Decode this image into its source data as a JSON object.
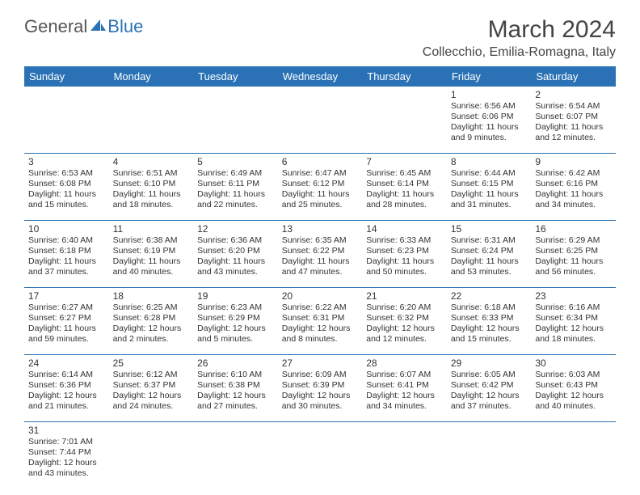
{
  "logo": {
    "text_general": "General",
    "text_blue": "Blue"
  },
  "title": "March 2024",
  "location": "Collecchio, Emilia-Romagna, Italy",
  "colors": {
    "header_bg": "#2a72b5",
    "header_fg": "#ffffff",
    "rule": "#2a72b5",
    "text": "#333333"
  },
  "weekdays": [
    "Sunday",
    "Monday",
    "Tuesday",
    "Wednesday",
    "Thursday",
    "Friday",
    "Saturday"
  ],
  "weeks": [
    [
      null,
      null,
      null,
      null,
      null,
      {
        "n": "1",
        "sr": "Sunrise: 6:56 AM",
        "ss": "Sunset: 6:06 PM",
        "dl": "Daylight: 11 hours and 9 minutes."
      },
      {
        "n": "2",
        "sr": "Sunrise: 6:54 AM",
        "ss": "Sunset: 6:07 PM",
        "dl": "Daylight: 11 hours and 12 minutes."
      }
    ],
    [
      {
        "n": "3",
        "sr": "Sunrise: 6:53 AM",
        "ss": "Sunset: 6:08 PM",
        "dl": "Daylight: 11 hours and 15 minutes."
      },
      {
        "n": "4",
        "sr": "Sunrise: 6:51 AM",
        "ss": "Sunset: 6:10 PM",
        "dl": "Daylight: 11 hours and 18 minutes."
      },
      {
        "n": "5",
        "sr": "Sunrise: 6:49 AM",
        "ss": "Sunset: 6:11 PM",
        "dl": "Daylight: 11 hours and 22 minutes."
      },
      {
        "n": "6",
        "sr": "Sunrise: 6:47 AM",
        "ss": "Sunset: 6:12 PM",
        "dl": "Daylight: 11 hours and 25 minutes."
      },
      {
        "n": "7",
        "sr": "Sunrise: 6:45 AM",
        "ss": "Sunset: 6:14 PM",
        "dl": "Daylight: 11 hours and 28 minutes."
      },
      {
        "n": "8",
        "sr": "Sunrise: 6:44 AM",
        "ss": "Sunset: 6:15 PM",
        "dl": "Daylight: 11 hours and 31 minutes."
      },
      {
        "n": "9",
        "sr": "Sunrise: 6:42 AM",
        "ss": "Sunset: 6:16 PM",
        "dl": "Daylight: 11 hours and 34 minutes."
      }
    ],
    [
      {
        "n": "10",
        "sr": "Sunrise: 6:40 AM",
        "ss": "Sunset: 6:18 PM",
        "dl": "Daylight: 11 hours and 37 minutes."
      },
      {
        "n": "11",
        "sr": "Sunrise: 6:38 AM",
        "ss": "Sunset: 6:19 PM",
        "dl": "Daylight: 11 hours and 40 minutes."
      },
      {
        "n": "12",
        "sr": "Sunrise: 6:36 AM",
        "ss": "Sunset: 6:20 PM",
        "dl": "Daylight: 11 hours and 43 minutes."
      },
      {
        "n": "13",
        "sr": "Sunrise: 6:35 AM",
        "ss": "Sunset: 6:22 PM",
        "dl": "Daylight: 11 hours and 47 minutes."
      },
      {
        "n": "14",
        "sr": "Sunrise: 6:33 AM",
        "ss": "Sunset: 6:23 PM",
        "dl": "Daylight: 11 hours and 50 minutes."
      },
      {
        "n": "15",
        "sr": "Sunrise: 6:31 AM",
        "ss": "Sunset: 6:24 PM",
        "dl": "Daylight: 11 hours and 53 minutes."
      },
      {
        "n": "16",
        "sr": "Sunrise: 6:29 AM",
        "ss": "Sunset: 6:25 PM",
        "dl": "Daylight: 11 hours and 56 minutes."
      }
    ],
    [
      {
        "n": "17",
        "sr": "Sunrise: 6:27 AM",
        "ss": "Sunset: 6:27 PM",
        "dl": "Daylight: 11 hours and 59 minutes."
      },
      {
        "n": "18",
        "sr": "Sunrise: 6:25 AM",
        "ss": "Sunset: 6:28 PM",
        "dl": "Daylight: 12 hours and 2 minutes."
      },
      {
        "n": "19",
        "sr": "Sunrise: 6:23 AM",
        "ss": "Sunset: 6:29 PM",
        "dl": "Daylight: 12 hours and 5 minutes."
      },
      {
        "n": "20",
        "sr": "Sunrise: 6:22 AM",
        "ss": "Sunset: 6:31 PM",
        "dl": "Daylight: 12 hours and 8 minutes."
      },
      {
        "n": "21",
        "sr": "Sunrise: 6:20 AM",
        "ss": "Sunset: 6:32 PM",
        "dl": "Daylight: 12 hours and 12 minutes."
      },
      {
        "n": "22",
        "sr": "Sunrise: 6:18 AM",
        "ss": "Sunset: 6:33 PM",
        "dl": "Daylight: 12 hours and 15 minutes."
      },
      {
        "n": "23",
        "sr": "Sunrise: 6:16 AM",
        "ss": "Sunset: 6:34 PM",
        "dl": "Daylight: 12 hours and 18 minutes."
      }
    ],
    [
      {
        "n": "24",
        "sr": "Sunrise: 6:14 AM",
        "ss": "Sunset: 6:36 PM",
        "dl": "Daylight: 12 hours and 21 minutes."
      },
      {
        "n": "25",
        "sr": "Sunrise: 6:12 AM",
        "ss": "Sunset: 6:37 PM",
        "dl": "Daylight: 12 hours and 24 minutes."
      },
      {
        "n": "26",
        "sr": "Sunrise: 6:10 AM",
        "ss": "Sunset: 6:38 PM",
        "dl": "Daylight: 12 hours and 27 minutes."
      },
      {
        "n": "27",
        "sr": "Sunrise: 6:09 AM",
        "ss": "Sunset: 6:39 PM",
        "dl": "Daylight: 12 hours and 30 minutes."
      },
      {
        "n": "28",
        "sr": "Sunrise: 6:07 AM",
        "ss": "Sunset: 6:41 PM",
        "dl": "Daylight: 12 hours and 34 minutes."
      },
      {
        "n": "29",
        "sr": "Sunrise: 6:05 AM",
        "ss": "Sunset: 6:42 PM",
        "dl": "Daylight: 12 hours and 37 minutes."
      },
      {
        "n": "30",
        "sr": "Sunrise: 6:03 AM",
        "ss": "Sunset: 6:43 PM",
        "dl": "Daylight: 12 hours and 40 minutes."
      }
    ],
    [
      {
        "n": "31",
        "sr": "Sunrise: 7:01 AM",
        "ss": "Sunset: 7:44 PM",
        "dl": "Daylight: 12 hours and 43 minutes."
      },
      null,
      null,
      null,
      null,
      null,
      null
    ]
  ]
}
